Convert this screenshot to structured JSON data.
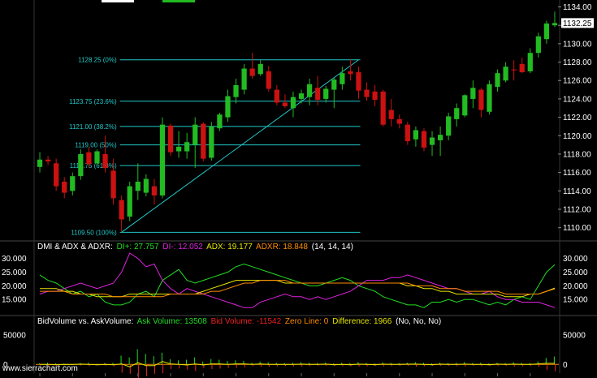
{
  "chart_data": {
    "type": "candlestick",
    "price_axis": {
      "ticks": [
        "1134.00",
        "1132.00",
        "1130.00",
        "1128.00",
        "1126.00",
        "1124.00",
        "1122.00",
        "1120.00",
        "1118.00",
        "1116.00",
        "1114.00",
        "1112.00",
        "1110.00"
      ],
      "tick_values": [
        1134,
        1132,
        1130,
        1128,
        1126,
        1124,
        1122,
        1120,
        1118,
        1116,
        1114,
        1112,
        1110
      ],
      "ylim": [
        1109,
        1134.4
      ],
      "last_price_label": "1132.25",
      "last_price": 1132.25
    },
    "candles": [
      {
        "o": 1116.6,
        "h": 1118.2,
        "l": 1116.0,
        "c": 1117.4
      },
      {
        "o": 1117.4,
        "h": 1117.8,
        "l": 1116.8,
        "c": 1117.2
      },
      {
        "o": 1117.0,
        "h": 1117.5,
        "l": 1114.0,
        "c": 1114.5
      },
      {
        "o": 1115.0,
        "h": 1115.5,
        "l": 1113.2,
        "c": 1113.8
      },
      {
        "o": 1114.0,
        "h": 1116.0,
        "l": 1113.5,
        "c": 1115.6
      },
      {
        "o": 1115.6,
        "h": 1118.5,
        "l": 1115.2,
        "c": 1118.0
      },
      {
        "o": 1118.2,
        "h": 1118.8,
        "l": 1116.5,
        "c": 1116.9
      },
      {
        "o": 1117.0,
        "h": 1118.5,
        "l": 1116.8,
        "c": 1118.3
      },
      {
        "o": 1118.0,
        "h": 1120.0,
        "l": 1116.0,
        "c": 1116.5
      },
      {
        "o": 1116.2,
        "h": 1117.5,
        "l": 1112.5,
        "c": 1113.2
      },
      {
        "o": 1113.0,
        "h": 1113.5,
        "l": 1109.6,
        "c": 1110.9
      },
      {
        "o": 1111.2,
        "h": 1115.0,
        "l": 1110.7,
        "c": 1114.5
      },
      {
        "o": 1114.0,
        "h": 1117.0,
        "l": 1113.0,
        "c": 1115.0
      },
      {
        "o": 1113.8,
        "h": 1115.8,
        "l": 1113.4,
        "c": 1115.3
      },
      {
        "o": 1114.5,
        "h": 1115.3,
        "l": 1112.5,
        "c": 1113.5
      },
      {
        "o": 1113.5,
        "h": 1122.0,
        "l": 1113.2,
        "c": 1121.2
      },
      {
        "o": 1121.1,
        "h": 1121.3,
        "l": 1117.8,
        "c": 1118.2
      },
      {
        "o": 1118.3,
        "h": 1120.5,
        "l": 1117.6,
        "c": 1118.8
      },
      {
        "o": 1118.3,
        "h": 1120.3,
        "l": 1117.5,
        "c": 1119.3
      },
      {
        "o": 1119.0,
        "h": 1122.0,
        "l": 1116.5,
        "c": 1121.2
      },
      {
        "o": 1121.3,
        "h": 1121.5,
        "l": 1117.2,
        "c": 1117.5
      },
      {
        "o": 1117.6,
        "h": 1121.5,
        "l": 1117.3,
        "c": 1121.0
      },
      {
        "o": 1120.8,
        "h": 1122.5,
        "l": 1120.5,
        "c": 1122.3
      },
      {
        "o": 1122.0,
        "h": 1125.0,
        "l": 1121.5,
        "c": 1124.3
      },
      {
        "o": 1124.2,
        "h": 1126.2,
        "l": 1123.5,
        "c": 1125.5
      },
      {
        "o": 1125.0,
        "h": 1127.8,
        "l": 1124.5,
        "c": 1127.3
      },
      {
        "o": 1127.3,
        "h": 1129.0,
        "l": 1126.2,
        "c": 1126.5
      },
      {
        "o": 1126.7,
        "h": 1128.2,
        "l": 1126.5,
        "c": 1127.8
      },
      {
        "o": 1127.0,
        "h": 1127.6,
        "l": 1124.8,
        "c": 1125.1
      },
      {
        "o": 1125.0,
        "h": 1125.5,
        "l": 1123.3,
        "c": 1123.6
      },
      {
        "o": 1123.6,
        "h": 1124.5,
        "l": 1123.0,
        "c": 1123.2
      },
      {
        "o": 1123.0,
        "h": 1124.8,
        "l": 1122.0,
        "c": 1124.2
      },
      {
        "o": 1124.0,
        "h": 1125.0,
        "l": 1123.5,
        "c": 1124.6
      },
      {
        "o": 1124.2,
        "h": 1126.2,
        "l": 1123.3,
        "c": 1125.6
      },
      {
        "o": 1125.2,
        "h": 1126.5,
        "l": 1123.3,
        "c": 1123.9
      },
      {
        "o": 1124.0,
        "h": 1125.4,
        "l": 1123.6,
        "c": 1125.1
      },
      {
        "o": 1125.0,
        "h": 1126.3,
        "l": 1123.0,
        "c": 1126.1
      },
      {
        "o": 1125.6,
        "h": 1127.5,
        "l": 1125.0,
        "c": 1126.8
      },
      {
        "o": 1127.0,
        "h": 1128.3,
        "l": 1126.0,
        "c": 1126.7
      },
      {
        "o": 1126.9,
        "h": 1127.5,
        "l": 1124.0,
        "c": 1124.9
      },
      {
        "o": 1125.0,
        "h": 1125.8,
        "l": 1123.8,
        "c": 1124.2
      },
      {
        "o": 1124.8,
        "h": 1125.5,
        "l": 1123.2,
        "c": 1123.9
      },
      {
        "o": 1124.8,
        "h": 1125.0,
        "l": 1121.0,
        "c": 1121.2
      },
      {
        "o": 1122.8,
        "h": 1124.0,
        "l": 1121.0,
        "c": 1121.8
      },
      {
        "o": 1121.8,
        "h": 1122.3,
        "l": 1120.8,
        "c": 1121.3
      },
      {
        "o": 1121.2,
        "h": 1121.5,
        "l": 1119.0,
        "c": 1119.4
      },
      {
        "o": 1119.6,
        "h": 1121.0,
        "l": 1118.8,
        "c": 1120.6
      },
      {
        "o": 1120.5,
        "h": 1120.8,
        "l": 1118.3,
        "c": 1118.7
      },
      {
        "o": 1119.0,
        "h": 1120.5,
        "l": 1117.8,
        "c": 1119.8
      },
      {
        "o": 1119.5,
        "h": 1121.0,
        "l": 1117.8,
        "c": 1120.1
      },
      {
        "o": 1120.0,
        "h": 1122.5,
        "l": 1119.5,
        "c": 1122.1
      },
      {
        "o": 1121.8,
        "h": 1123.5,
        "l": 1121.0,
        "c": 1123.0
      },
      {
        "o": 1122.2,
        "h": 1124.5,
        "l": 1122.0,
        "c": 1124.4
      },
      {
        "o": 1124.0,
        "h": 1126.0,
        "l": 1123.0,
        "c": 1125.2
      },
      {
        "o": 1125.0,
        "h": 1125.2,
        "l": 1122.0,
        "c": 1122.8
      },
      {
        "o": 1122.6,
        "h": 1126.0,
        "l": 1122.3,
        "c": 1125.6
      },
      {
        "o": 1125.3,
        "h": 1127.2,
        "l": 1124.8,
        "c": 1126.8
      },
      {
        "o": 1126.0,
        "h": 1128.0,
        "l": 1125.8,
        "c": 1127.5
      },
      {
        "o": 1127.2,
        "h": 1128.2,
        "l": 1126.0,
        "c": 1127.1
      },
      {
        "o": 1127.8,
        "h": 1128.5,
        "l": 1126.8,
        "c": 1126.9
      },
      {
        "o": 1127.0,
        "h": 1129.5,
        "l": 1126.8,
        "c": 1129.0
      },
      {
        "o": 1129.0,
        "h": 1131.2,
        "l": 1128.5,
        "c": 1130.8
      },
      {
        "o": 1130.5,
        "h": 1132.5,
        "l": 1130.0,
        "c": 1132.2
      },
      {
        "o": 1132.0,
        "h": 1133.5,
        "l": 1131.8,
        "c": 1132.25
      }
    ],
    "fib_retracement": {
      "levels": [
        {
          "label": "1128.25 (0%)",
          "value": 1128.25
        },
        {
          "label": "1123.75 (23.6%)",
          "value": 1123.75
        },
        {
          "label": "1121.00 (38.2%)",
          "value": 1121.0
        },
        {
          "label": "1119.00 (50%)",
          "value": 1119.0
        },
        {
          "label": "1116.75 (61.8%)",
          "value": 1116.75
        },
        {
          "label": "1109.50 (100%)",
          "value": 1109.5
        }
      ],
      "trend_line": {
        "from_candle": 10,
        "from_value": 1109.5,
        "to_candle": 39,
        "to_value": 1128.25
      }
    },
    "dmi_panel": {
      "title_prefix": "DMI & ADX & ADXR:",
      "items": [
        {
          "label": "DI+: 27.757",
          "color": "#22dd22"
        },
        {
          "label": "DI-: 12.052",
          "color": "#dd22dd"
        },
        {
          "label": "ADX: 19.177",
          "color": "#e6e600"
        },
        {
          "label": "ADXR: 18.848",
          "color": "#ff8c00"
        },
        {
          "label": "(14, 14, 14)",
          "color": "#ffffff"
        }
      ],
      "ticks": [
        "30.000",
        "25.000",
        "20.000",
        "15.000"
      ],
      "tick_values": [
        30,
        25,
        20,
        15
      ],
      "ylim": [
        10,
        32
      ],
      "series": [
        {
          "name": "DI+",
          "color": "#22dd22",
          "values": [
            24,
            22,
            21,
            19,
            17,
            18,
            16,
            17,
            14,
            13,
            13,
            14,
            17,
            18,
            16,
            22,
            24,
            26,
            22,
            21,
            22,
            23,
            24,
            25,
            27,
            28,
            27,
            26,
            25,
            24,
            23,
            22,
            21,
            20,
            20,
            21,
            22,
            23,
            22,
            20,
            19,
            18,
            16,
            15,
            14,
            13,
            13,
            12,
            14,
            14,
            15,
            14,
            15,
            15,
            14,
            13,
            14,
            13,
            15,
            16,
            15,
            20,
            25,
            27.757
          ]
        },
        {
          "name": "DI-",
          "color": "#dd22dd",
          "values": [
            17,
            18,
            18,
            19,
            20,
            21,
            20,
            19,
            20,
            21,
            25,
            32,
            30,
            27,
            28,
            22,
            19,
            17,
            19,
            18,
            17,
            16,
            15,
            14,
            13,
            12,
            12,
            14,
            15,
            16,
            17,
            16,
            16,
            15,
            16,
            15,
            16,
            17,
            18,
            20,
            22,
            22,
            22,
            23,
            23,
            24,
            23,
            22,
            21,
            20,
            19,
            19,
            18,
            17,
            17,
            18,
            16,
            15,
            15,
            14,
            14,
            14,
            13,
            12.052
          ]
        },
        {
          "name": "ADX",
          "color": "#e6e600",
          "values": [
            19,
            19,
            19,
            18,
            18,
            17,
            17,
            16,
            16,
            16,
            16,
            17,
            17,
            17,
            17,
            17,
            17,
            17,
            17,
            17,
            18,
            19,
            20,
            21,
            22,
            22,
            22,
            22,
            22,
            22,
            21,
            21,
            21,
            21,
            21,
            21,
            21,
            21,
            21,
            21,
            21,
            21,
            21,
            21,
            21,
            20,
            20,
            19,
            19,
            18,
            18,
            17,
            17,
            17,
            17,
            17,
            17,
            16,
            16,
            16,
            17,
            17,
            18,
            19.177
          ]
        },
        {
          "name": "ADXR",
          "color": "#ff8c00",
          "values": [
            18,
            18,
            18,
            18,
            17,
            17,
            17,
            17,
            17,
            16,
            16,
            16,
            16,
            16,
            16,
            16,
            17,
            17,
            17,
            17,
            17,
            18,
            18,
            19,
            20,
            21,
            21,
            22,
            22,
            22,
            22,
            21,
            21,
            21,
            21,
            21,
            21,
            21,
            21,
            21,
            21,
            21,
            21,
            21,
            21,
            21,
            20,
            20,
            20,
            19,
            19,
            19,
            18,
            18,
            18,
            18,
            18,
            17,
            17,
            17,
            17,
            17,
            18,
            18.848
          ]
        }
      ]
    },
    "volume_panel": {
      "title_prefix": "BidVolume vs. AskVolume:",
      "items": [
        {
          "label": "Ask Volume: 13508",
          "color": "#22dd22"
        },
        {
          "label": "Bid Volume: -11542",
          "color": "#ee2222"
        },
        {
          "label": "Zero Line: 0",
          "color": "#ff8c00"
        },
        {
          "label": "Difference: 1966",
          "color": "#e6e600"
        },
        {
          "label": "(No, No, No)",
          "color": "#ffffff"
        }
      ],
      "ticks": [
        "50000",
        "0"
      ],
      "tick_values": [
        50000,
        0
      ],
      "ylim": [
        -12000,
        68000
      ],
      "ask": [
        2000,
        3000,
        2000,
        1500,
        1000,
        2500,
        3000,
        1000,
        2500,
        3000,
        15000,
        12000,
        26000,
        18000,
        14000,
        20000,
        9000,
        7000,
        8000,
        12000,
        5000,
        9000,
        8000,
        6000,
        7000,
        6000,
        3000,
        5000,
        4000,
        3000,
        2500,
        3000,
        4000,
        3000,
        2500,
        3000,
        2000,
        3000,
        2500,
        4000,
        3000,
        2000,
        3500,
        3000,
        2500,
        3000,
        4000,
        3000,
        2000,
        3000,
        2500,
        3000,
        4000,
        2500,
        3000,
        2000,
        3000,
        2500,
        4000,
        3000,
        2500,
        5000,
        11000,
        13508
      ],
      "bid": [
        -2000,
        -3000,
        -2500,
        -1500,
        -1200,
        -2000,
        -3000,
        -1500,
        -2500,
        -3500,
        -14000,
        -16000,
        -23000,
        -20000,
        -16000,
        -15000,
        -8000,
        -7000,
        -9000,
        -11000,
        -6000,
        -8000,
        -7000,
        -6000,
        -6000,
        -5000,
        -3000,
        -4000,
        -4000,
        -3000,
        -2500,
        -3000,
        -3500,
        -3000,
        -2500,
        -2500,
        -2500,
        -3000,
        -3000,
        -3500,
        -3000,
        -2500,
        -3000,
        -3000,
        -2500,
        -2500,
        -3500,
        -3000,
        -2500,
        -2500,
        -2500,
        -3000,
        -3500,
        -2500,
        -3000,
        -2500,
        -2500,
        -2500,
        -3500,
        -3000,
        -2500,
        -4000,
        -9000,
        -11542
      ]
    }
  },
  "footer": {
    "watermark": "www.sierrachart.com"
  },
  "colors": {
    "up": "#22bb22",
    "down": "#cc1111",
    "fib": "#20c8c8",
    "grid": "#222222",
    "axis_text": "#ffffff",
    "last_price_bg": "#ffffff",
    "last_price_text": "#000000"
  }
}
